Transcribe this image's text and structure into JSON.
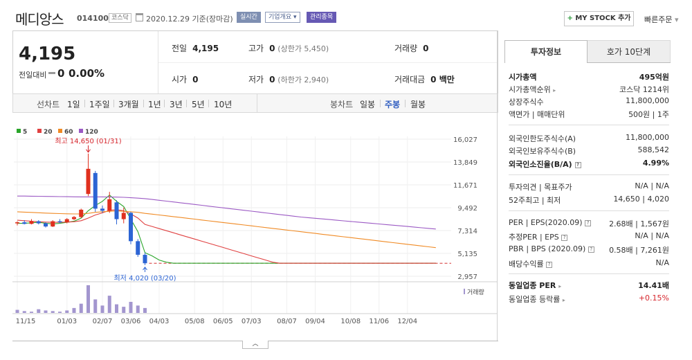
{
  "header": {
    "stock_name": "메디앙스",
    "stock_code": "014100",
    "market_badge": "코스닥",
    "date_text": "2020.12.29 기준(장마감)",
    "realtime_btn": "실시간",
    "company_btn": "기업개요",
    "watch_btn": "관리종목",
    "mystock_btn": "MY STOCK 추가",
    "quick_order": "빠른주문"
  },
  "price": {
    "current": "4,195",
    "change_label": "전일대비",
    "change_value": "0",
    "change_pct": "0.00%",
    "prev_label": "전일",
    "prev_value": "4,195",
    "high_label": "고가",
    "high_value": "0",
    "upper_limit": "(상한가 5,450)",
    "volume_label": "거래량",
    "volume_value": "0",
    "open_label": "시가",
    "open_value": "0",
    "low_label": "저가",
    "low_value": "0",
    "lower_limit": "(하한가 2,940)",
    "amount_label": "거래대금",
    "amount_value": "0 백만"
  },
  "period_bar": {
    "line_label": "선차트",
    "periods": [
      "1일",
      "1주일",
      "3개월",
      "1년",
      "3년",
      "5년",
      "10년"
    ],
    "selected_period": "1년",
    "candle_label": "봉차트",
    "candle_types": [
      "일봉",
      "주봉",
      "월봉"
    ],
    "selected_candle": "주봉"
  },
  "chart_data": {
    "type": "candlestick",
    "legend": [
      {
        "name": "5",
        "color": "#2aa52a"
      },
      {
        "name": "20",
        "color": "#e04040"
      },
      {
        "name": "60",
        "color": "#f08a24"
      },
      {
        "name": "120",
        "color": "#9b59c4"
      }
    ],
    "y_ticks": [
      "16,027",
      "13,849",
      "11,671",
      "9,492",
      "7,314",
      "5,135",
      "2,957"
    ],
    "ylim": [
      2957,
      16027
    ],
    "x_ticks": [
      "11/15",
      "01/03",
      "02/07",
      "03/06",
      "04/03",
      "05/08",
      "06/05",
      "07/03",
      "08/07",
      "09/04",
      "10/08",
      "11/06",
      "12/04"
    ],
    "x_tick_index": [
      0,
      7,
      12,
      16,
      20,
      25,
      29,
      33,
      38,
      42,
      47,
      51,
      55
    ],
    "high_annotation": "최고 14,650 (01/31)",
    "low_annotation": "최저 4,020 (03/20)",
    "high_index": 10,
    "low_index": 18,
    "high_value": 14650,
    "low_value": 4020,
    "reference_price": 4195,
    "volume_label": "거래량",
    "candles": [
      {
        "o": 8000,
        "h": 8200,
        "l": 7800,
        "c": 8100
      },
      {
        "o": 8100,
        "h": 8300,
        "l": 7900,
        "c": 7950
      },
      {
        "o": 7950,
        "h": 8400,
        "l": 7900,
        "c": 8200
      },
      {
        "o": 8200,
        "h": 8300,
        "l": 7900,
        "c": 8000
      },
      {
        "o": 8000,
        "h": 8100,
        "l": 7600,
        "c": 7700
      },
      {
        "o": 7700,
        "h": 8300,
        "l": 7650,
        "c": 8200
      },
      {
        "o": 8200,
        "h": 8400,
        "l": 8000,
        "c": 8100
      },
      {
        "o": 8100,
        "h": 8500,
        "l": 8000,
        "c": 8400
      },
      {
        "o": 8400,
        "h": 8700,
        "l": 8300,
        "c": 8600
      },
      {
        "o": 8600,
        "h": 9400,
        "l": 8500,
        "c": 9300
      },
      {
        "o": 10800,
        "h": 14650,
        "l": 10600,
        "c": 13200
      },
      {
        "o": 12800,
        "h": 13000,
        "l": 9100,
        "c": 9400
      },
      {
        "o": 9400,
        "h": 9700,
        "l": 9000,
        "c": 9200
      },
      {
        "o": 9200,
        "h": 11000,
        "l": 9000,
        "c": 10300
      },
      {
        "o": 10000,
        "h": 10200,
        "l": 7900,
        "c": 8400
      },
      {
        "o": 8400,
        "h": 9500,
        "l": 8000,
        "c": 9000
      },
      {
        "o": 9000,
        "h": 9100,
        "l": 6000,
        "c": 6300
      },
      {
        "o": 6300,
        "h": 6500,
        "l": 4800,
        "c": 5000
      },
      {
        "o": 5000,
        "h": 5200,
        "l": 4020,
        "c": 4195
      }
    ],
    "ma": {
      "5": [
        8000,
        8000,
        8050,
        8100,
        8000,
        7950,
        8000,
        8100,
        8200,
        8500,
        9200,
        9700,
        10100,
        10700,
        10100,
        9600,
        8400,
        7200,
        5200,
        4900,
        4500,
        4300,
        4195,
        4195,
        4195,
        4195,
        4195,
        4195,
        4195,
        4195,
        4195,
        4195,
        4195,
        4195,
        4195,
        4195,
        4195,
        4195,
        4195,
        4195,
        4195,
        4195,
        4195,
        4195,
        4195,
        4195,
        4195,
        4195,
        4195,
        4195,
        4195,
        4195,
        4195,
        4195,
        4195,
        4195,
        4195,
        4195,
        4195,
        4195
      ],
      "20": [
        8300,
        8250,
        8200,
        8150,
        8120,
        8100,
        8100,
        8120,
        8150,
        8250,
        8500,
        8800,
        9000,
        9250,
        9300,
        9200,
        8900,
        8500,
        7900,
        7700,
        7500,
        7300,
        7100,
        6900,
        6700,
        6500,
        6300,
        6100,
        5900,
        5700,
        5500,
        5300,
        5100,
        4900,
        4700,
        4500,
        4300,
        4195,
        4195,
        4195,
        4195,
        4195,
        4195,
        4195,
        4195,
        4195,
        4195,
        4195,
        4195,
        4195,
        4195,
        4195,
        4195,
        4195,
        4195,
        4195,
        4195,
        4195,
        4195,
        4195
      ],
      "60": [
        9100,
        9070,
        9040,
        9010,
        8980,
        8950,
        8930,
        8910,
        8900,
        8900,
        8950,
        9050,
        9100,
        9150,
        9180,
        9150,
        9100,
        9050,
        8950,
        8880,
        8800,
        8720,
        8640,
        8560,
        8480,
        8400,
        8320,
        8240,
        8160,
        8080,
        8000,
        7920,
        7840,
        7760,
        7680,
        7600,
        7520,
        7440,
        7360,
        7280,
        7200,
        7120,
        7040,
        6960,
        6880,
        6800,
        6720,
        6640,
        6560,
        6480,
        6400,
        6320,
        6240,
        6160,
        6080,
        6000,
        5920,
        5840,
        5760,
        5680
      ],
      "120": [
        10600,
        10600,
        10590,
        10580,
        10570,
        10560,
        10550,
        10540,
        10530,
        10520,
        10520,
        10520,
        10520,
        10510,
        10500,
        10480,
        10440,
        10400,
        10360,
        10280,
        10200,
        10120,
        10040,
        9960,
        9880,
        9800,
        9720,
        9640,
        9560,
        9480,
        9400,
        9320,
        9240,
        9160,
        9080,
        9000,
        8920,
        8840,
        8760,
        8680,
        8600,
        8540,
        8480,
        8420,
        8360,
        8300,
        8240,
        8180,
        8120,
        8060,
        8000,
        7940,
        7880,
        7820,
        7760,
        7700,
        7640,
        7580,
        7520,
        7460
      ]
    },
    "volume": [
      5,
      3,
      2,
      6,
      4,
      3,
      2,
      4,
      8,
      15,
      45,
      22,
      12,
      28,
      14,
      10,
      18,
      12,
      8
    ]
  },
  "invest_panel": {
    "tab_active": "투자정보",
    "tab_other": "호가 10단계",
    "market_cap_label": "시가총액",
    "market_cap_value": "495억원",
    "rank_label": "시가총액순위",
    "rank_value": "코스닥 1214위",
    "shares_label": "상장주식수",
    "shares_value": "11,800,000",
    "face_label": "액면가 | 매매단위",
    "face_value": "500원 | 1주",
    "foreign_limit_label": "외국인한도주식수(A)",
    "foreign_limit_value": "11,800,000",
    "foreign_hold_label": "외국인보유주식수(B)",
    "foreign_hold_value": "588,542",
    "foreign_ratio_label": "외국인소진율(B/A)",
    "foreign_ratio_value": "4.99%",
    "opinion_label": "투자의견 | 목표주가",
    "opinion_value": "N/A | N/A",
    "week52_label": "52주최고 | 최저",
    "week52_value": "14,650 | 4,020",
    "per_label": "PER | EPS(2020.09)",
    "per_value": "2.68배 | 1,567원",
    "est_per_label": "추정PER | EPS",
    "est_per_value": "N/A | N/A",
    "pbr_label": "PBR | BPS (2020.09)",
    "pbr_value": "0.58배 | 7,261원",
    "dividend_label": "배당수익률",
    "dividend_value": "N/A",
    "industry_per_label": "동일업종 PER",
    "industry_per_value": "14.41배",
    "industry_rate_label": "동일업종 등락률",
    "industry_rate_value": "+0.15%"
  }
}
